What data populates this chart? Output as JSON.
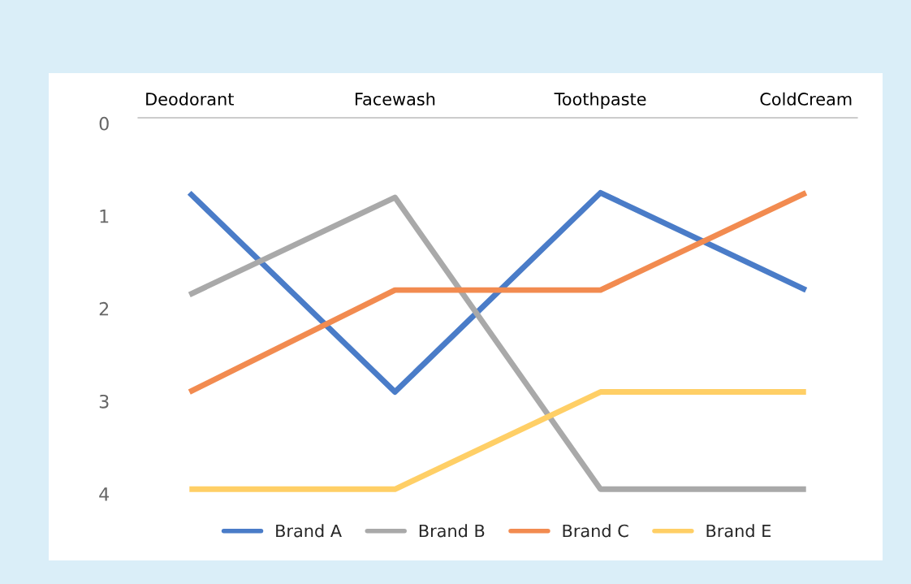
{
  "chart_data": {
    "type": "line",
    "categories": [
      "Deodorant",
      "Facewash",
      "Toothpaste",
      "ColdCream"
    ],
    "series": [
      {
        "name": "Brand A",
        "color": "#4a7cc8",
        "values": [
          0.75,
          2.9,
          0.75,
          1.8
        ]
      },
      {
        "name": "Brand B",
        "color": "#a9a9a9",
        "values": [
          1.85,
          0.8,
          3.95,
          3.95
        ]
      },
      {
        "name": "Brand C",
        "color": "#f28b50",
        "values": [
          2.9,
          1.8,
          1.8,
          0.75
        ]
      },
      {
        "name": "Brand E",
        "color": "#ffcf66",
        "values": [
          3.95,
          3.95,
          2.9,
          2.9
        ]
      }
    ],
    "ylim": [
      4,
      -0.06
    ],
    "yticks": [
      0,
      1,
      2,
      3,
      4
    ],
    "grid": false,
    "legend": "bottom",
    "marker": "none",
    "line_style": "solid"
  }
}
